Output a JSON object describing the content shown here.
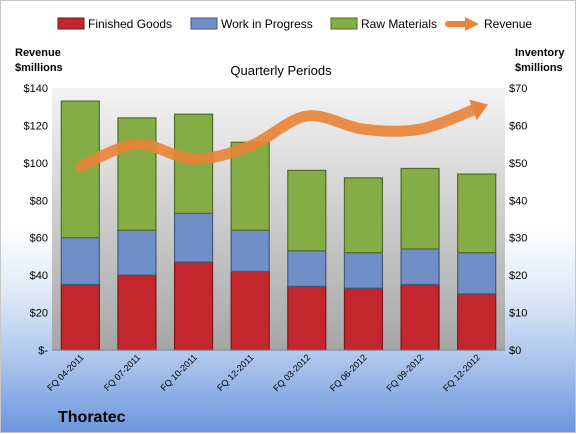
{
  "chart_data": {
    "type": "bar",
    "stacked": true,
    "subtitle": "Quarterly Periods",
    "company": "Thoratec",
    "categories": [
      "FQ 04-2011",
      "FQ 07-2011",
      "FQ 10-2011",
      "FQ 12-2011",
      "FQ 03-2012",
      "FQ 06-2012",
      "FQ 09-2012",
      "FQ 12-2012"
    ],
    "left_axis": {
      "label_line1": "Revenue",
      "label_line2": "$millions",
      "ylim": [
        0,
        140
      ],
      "ticks": [
        0,
        20,
        40,
        60,
        80,
        100,
        120,
        140
      ],
      "tick_labels": [
        "$-",
        "$20",
        "$40",
        "$60",
        "$80",
        "$100",
        "$120",
        "$140"
      ]
    },
    "right_axis": {
      "label_line1": "Inventory",
      "label_line2": "$millions",
      "ylim": [
        0,
        70
      ],
      "ticks": [
        0,
        10,
        20,
        30,
        40,
        50,
        60,
        70
      ],
      "tick_labels": [
        "$0",
        "$10",
        "$20",
        "$30",
        "$40",
        "$50",
        "$60",
        "$70"
      ]
    },
    "series": [
      {
        "name": "Finished Goods",
        "axis": "right",
        "kind": "bar",
        "color": "#c4262e",
        "values": [
          17.5,
          20,
          23.5,
          21,
          17,
          16.5,
          17.5,
          15
        ]
      },
      {
        "name": "Work in Progress",
        "axis": "right",
        "kind": "bar",
        "color": "#6f8fc6",
        "values": [
          12.5,
          12,
          13,
          11,
          9.5,
          9.5,
          9.5,
          11
        ]
      },
      {
        "name": "Raw Materials",
        "axis": "right",
        "kind": "bar",
        "color": "#84ad46",
        "values": [
          36.5,
          30,
          26.5,
          23.5,
          21.5,
          20,
          21.5,
          21
        ]
      },
      {
        "name": "Revenue",
        "axis": "left",
        "kind": "line",
        "color": "#e8843a",
        "values": [
          98,
          110,
          102,
          109,
          125,
          118,
          118,
          129
        ]
      }
    ],
    "legend_position": "top",
    "grid": false
  }
}
